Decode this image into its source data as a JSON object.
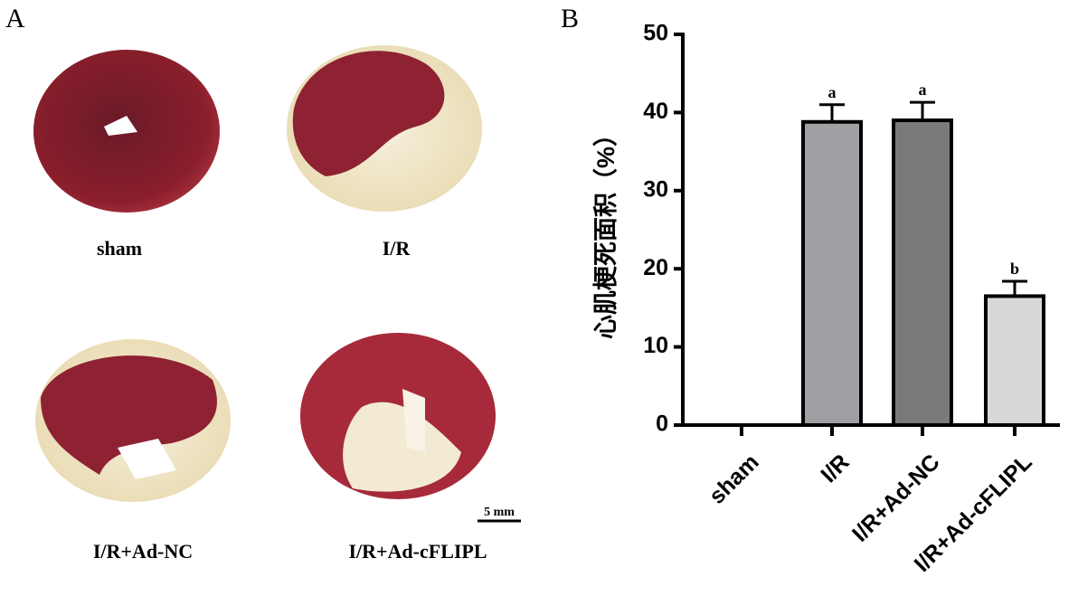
{
  "panel_a": {
    "label": "A",
    "images": [
      {
        "label": "sham"
      },
      {
        "label": "I/R"
      },
      {
        "label": "I/R+Ad-NC"
      },
      {
        "label": "I/R+Ad-cFLIPL"
      }
    ],
    "scale_bar": "5 mm"
  },
  "panel_b": {
    "label": "B"
  },
  "chart_data": {
    "type": "bar",
    "y_label": "心肌梗死面积（%）",
    "categories": [
      "sham",
      "I/R",
      "I/R+Ad-NC",
      "I/R+Ad-cFLIPL"
    ],
    "values": [
      0,
      38.8,
      39,
      16.5
    ],
    "errors": [
      0,
      2.2,
      2.3,
      1.9
    ],
    "annotations": [
      null,
      "a",
      "a",
      "b"
    ],
    "colors": [
      "#ffffff",
      "#a0a0a4",
      "#7a7a7a",
      "#d8d8d8"
    ],
    "ylim": [
      0,
      50
    ],
    "yticks": [
      0,
      10,
      20,
      30,
      40,
      50
    ],
    "grid": false
  }
}
